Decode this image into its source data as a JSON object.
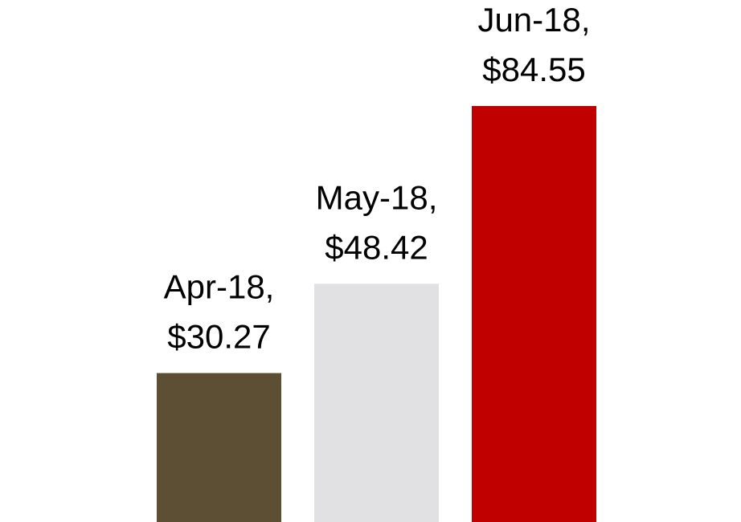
{
  "chart_data": {
    "type": "bar",
    "categories": [
      "Apr-18,",
      "May-18,",
      "Jun-18,"
    ],
    "values": [
      30.27,
      48.42,
      84.55
    ],
    "value_labels": [
      "$30.27",
      "$48.42",
      "$84.55"
    ],
    "colors": [
      "#5c4f33",
      "#e1e1e3",
      "#c00000"
    ]
  }
}
